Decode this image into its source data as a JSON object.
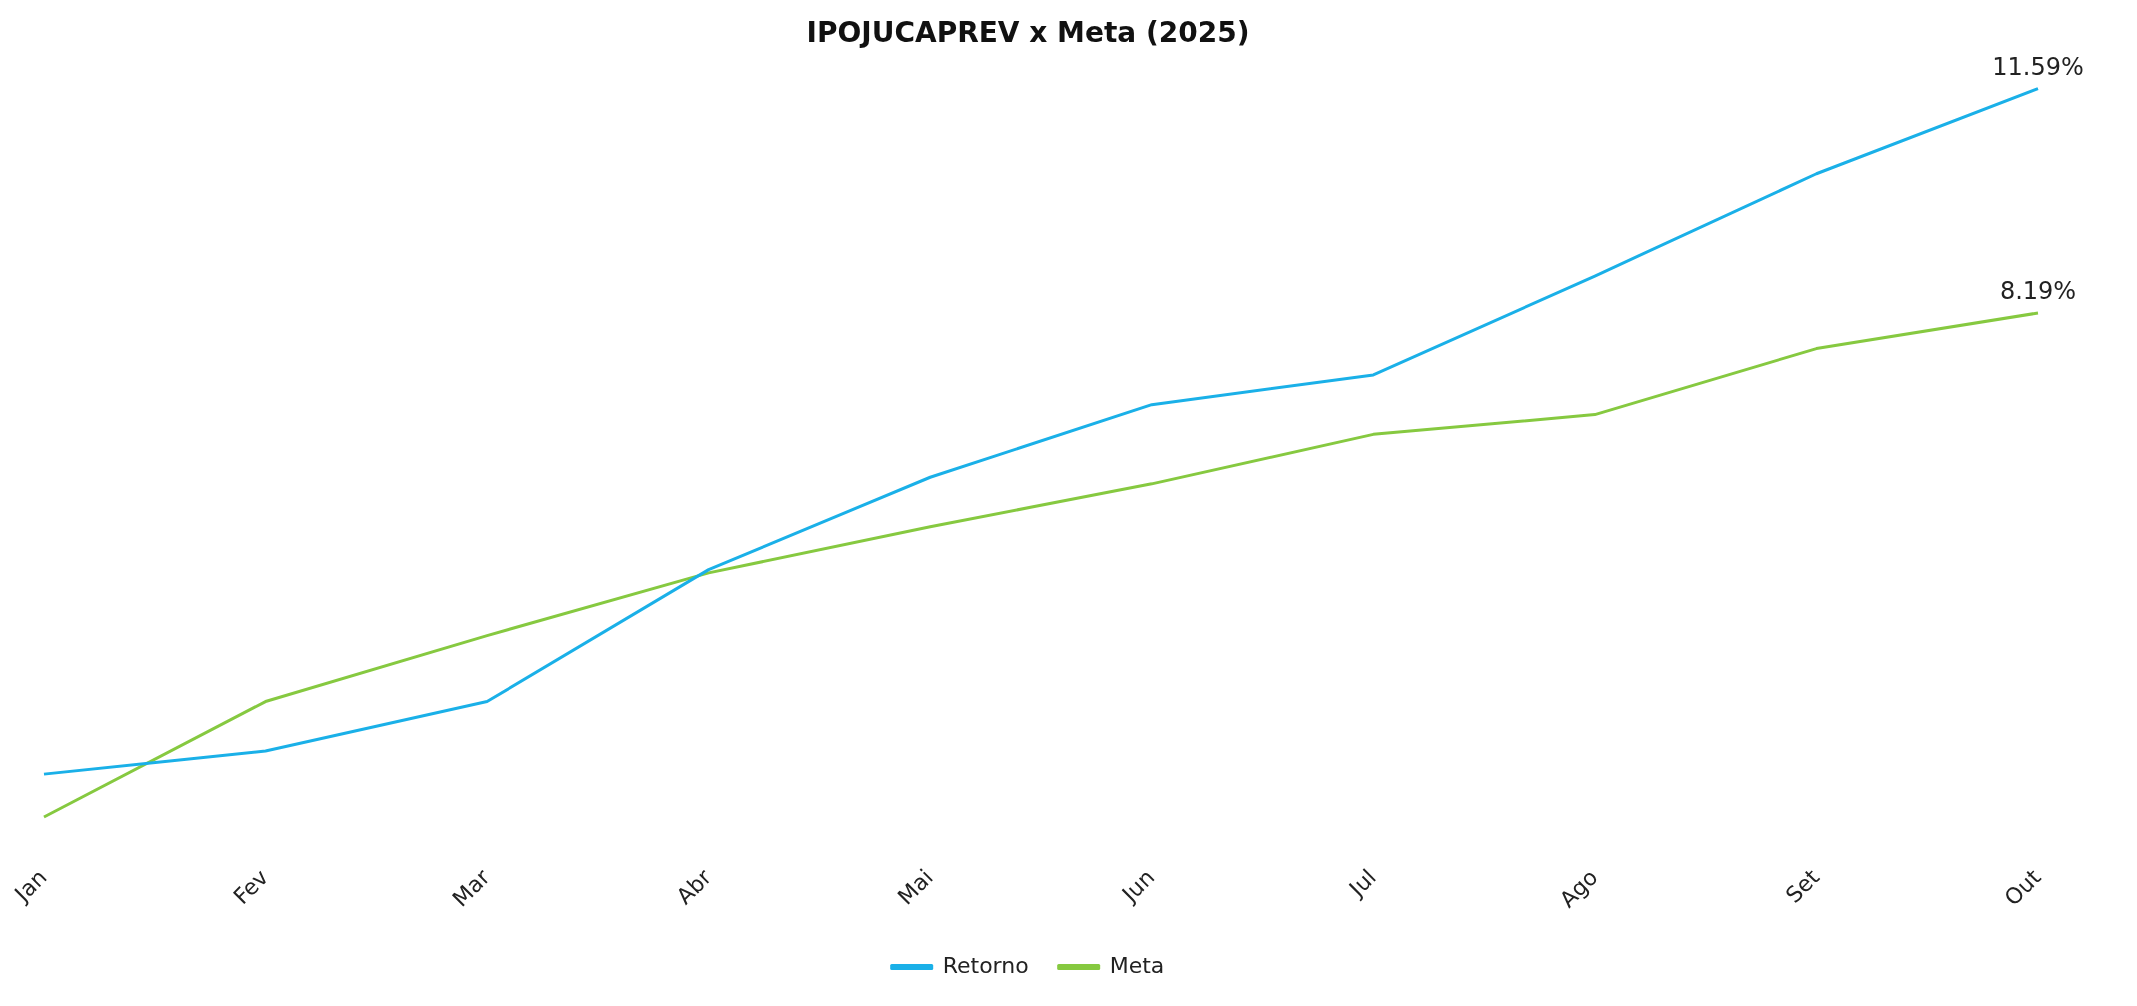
{
  "chart_data": {
    "type": "line",
    "title": "IPOJUCAPREV x Meta (2025)",
    "categories": [
      "Jan",
      "Fev",
      "Mar",
      "Abr",
      "Mai",
      "Jun",
      "Jul",
      "Ago",
      "Set",
      "Out"
    ],
    "series": [
      {
        "name": "Retorno",
        "color": "#1ab0e8",
        "values": [
          1.2,
          1.55,
          2.3,
          4.3,
          5.7,
          6.8,
          7.25,
          8.75,
          10.3,
          11.59
        ],
        "value_labels": [
          null,
          null,
          null,
          null,
          null,
          null,
          null,
          null,
          null,
          "11.59%"
        ]
      },
      {
        "name": "Meta",
        "color": "#86c940",
        "values": [
          0.55,
          2.3,
          3.3,
          4.25,
          4.95,
          5.6,
          6.35,
          6.65,
          7.65,
          8.19
        ],
        "value_labels": [
          null,
          null,
          null,
          null,
          null,
          null,
          null,
          null,
          null,
          "8.19%"
        ]
      }
    ],
    "legend": "bottom",
    "grid": false,
    "marker": "none",
    "line_style": "solid",
    "tick_labels": "x"
  }
}
